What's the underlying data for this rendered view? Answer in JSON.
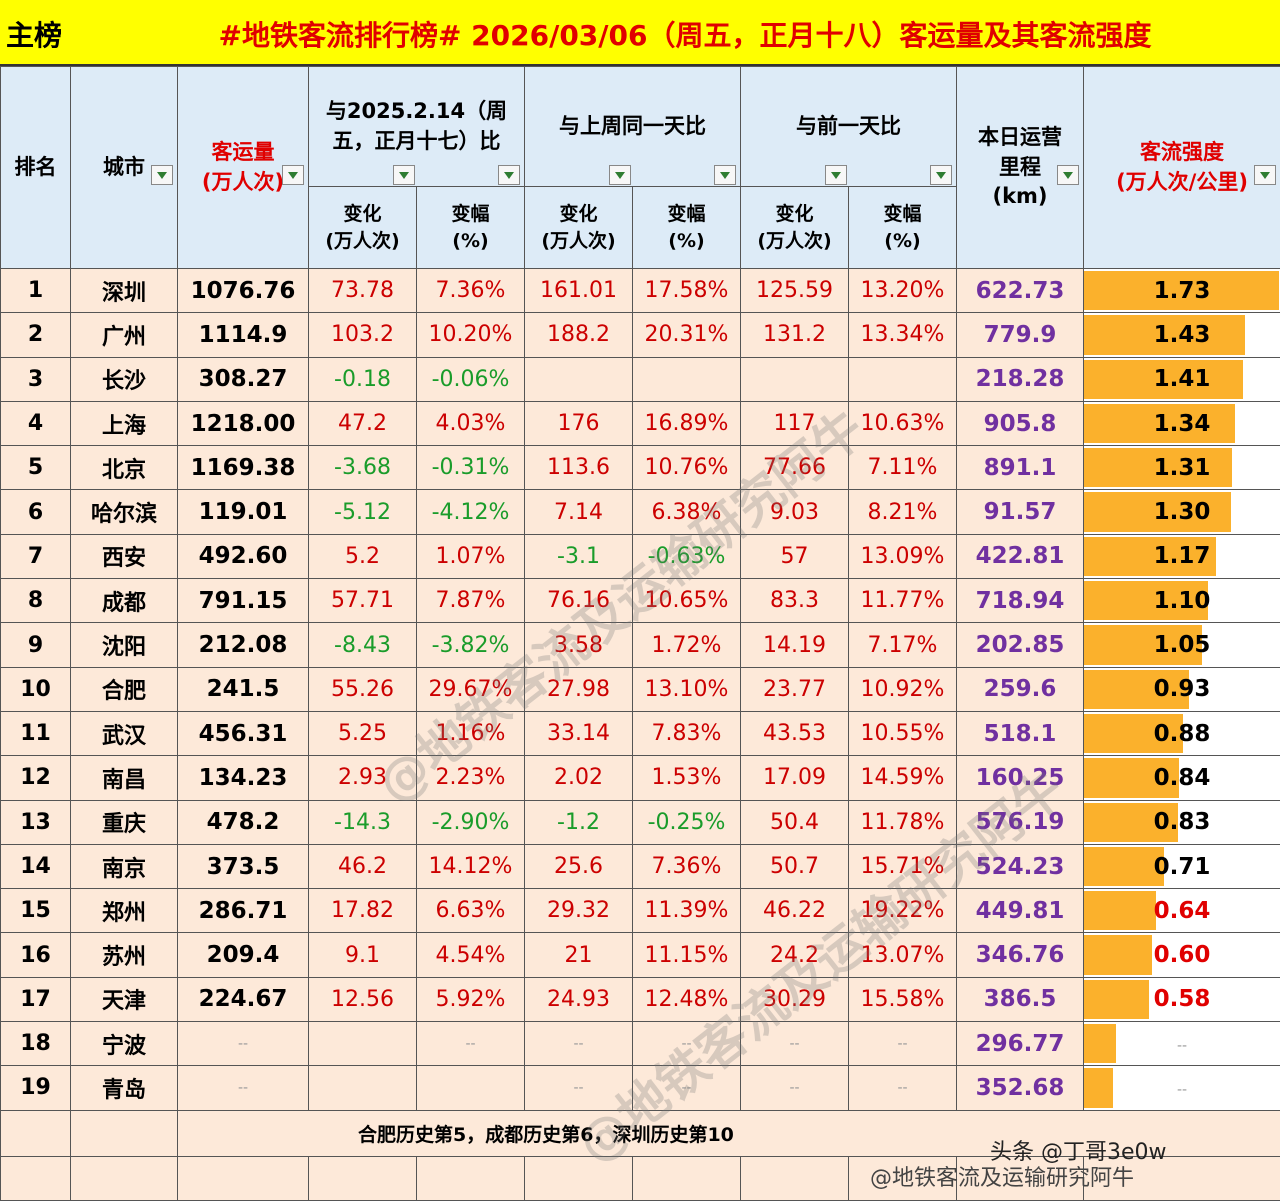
{
  "title": {
    "tag": "主榜",
    "main": "#地铁客流排行榜# 2026/03/06（周五，正月十八）客运量及其客流强度"
  },
  "headers": {
    "rank": "排名",
    "city": "城市",
    "volume": "客运量",
    "volume_unit": "(万人次)",
    "yoy_l1": "与2025.2.14（周",
    "yoy_l2": "五，正月十七）比",
    "wow": "与上周同一天比",
    "dod": "与前一天比",
    "mileage_l1": "本日运营",
    "mileage_l2": "里程",
    "mileage_l3": "(km)",
    "intensity": "客流强度",
    "intensity_unit": "(万人次/公里)",
    "change": "变化",
    "change_unit": "(万人次)",
    "pct": "变幅",
    "pct_unit": "(%)"
  },
  "rows": [
    {
      "rank": "1",
      "city": "深圳",
      "volume": "1076.76",
      "yc": "73.78",
      "yp": "7.36%",
      "wc": "161.01",
      "wp": "17.58%",
      "dc": "125.59",
      "dp": "13.20%",
      "mileage": "622.73",
      "intensity": "1.73",
      "intensity_value": 1.73
    },
    {
      "rank": "2",
      "city": "广州",
      "volume": "1114.9",
      "yc": "103.2",
      "yp": "10.20%",
      "wc": "188.2",
      "wp": "20.31%",
      "dc": "131.2",
      "dp": "13.34%",
      "mileage": "779.9",
      "intensity": "1.43",
      "intensity_value": 1.43
    },
    {
      "rank": "3",
      "city": "长沙",
      "volume": "308.27",
      "yc": "-0.18",
      "yp": "-0.06%",
      "wc": "",
      "wp": "",
      "dc": "",
      "dp": "",
      "mileage": "218.28",
      "intensity": "1.41",
      "intensity_value": 1.41
    },
    {
      "rank": "4",
      "city": "上海",
      "volume": "1218.00",
      "yc": "47.2",
      "yp": "4.03%",
      "wc": "176",
      "wp": "16.89%",
      "dc": "117",
      "dp": "10.63%",
      "mileage": "905.8",
      "intensity": "1.34",
      "intensity_value": 1.34
    },
    {
      "rank": "5",
      "city": "北京",
      "volume": "1169.38",
      "yc": "-3.68",
      "yp": "-0.31%",
      "wc": "113.6",
      "wp": "10.76%",
      "dc": "77.66",
      "dp": "7.11%",
      "mileage": "891.1",
      "intensity": "1.31",
      "intensity_value": 1.31
    },
    {
      "rank": "6",
      "city": "哈尔滨",
      "volume": "119.01",
      "yc": "-5.12",
      "yp": "-4.12%",
      "wc": "7.14",
      "wp": "6.38%",
      "dc": "9.03",
      "dp": "8.21%",
      "mileage": "91.57",
      "intensity": "1.30",
      "intensity_value": 1.3
    },
    {
      "rank": "7",
      "city": "西安",
      "volume": "492.60",
      "yc": "5.2",
      "yp": "1.07%",
      "wc": "-3.1",
      "wp": "-0.63%",
      "dc": "57",
      "dp": "13.09%",
      "mileage": "422.81",
      "intensity": "1.17",
      "intensity_value": 1.17
    },
    {
      "rank": "8",
      "city": "成都",
      "volume": "791.15",
      "yc": "57.71",
      "yp": "7.87%",
      "wc": "76.16",
      "wp": "10.65%",
      "dc": "83.3",
      "dp": "11.77%",
      "mileage": "718.94",
      "intensity": "1.10",
      "intensity_value": 1.1
    },
    {
      "rank": "9",
      "city": "沈阳",
      "volume": "212.08",
      "yc": "-8.43",
      "yp": "-3.82%",
      "wc": "3.58",
      "wp": "1.72%",
      "dc": "14.19",
      "dp": "7.17%",
      "mileage": "202.85",
      "intensity": "1.05",
      "intensity_value": 1.05
    },
    {
      "rank": "10",
      "city": "合肥",
      "volume": "241.5",
      "yc": "55.26",
      "yp": "29.67%",
      "wc": "27.98",
      "wp": "13.10%",
      "dc": "23.77",
      "dp": "10.92%",
      "mileage": "259.6",
      "intensity": "0.93",
      "intensity_value": 0.93
    },
    {
      "rank": "11",
      "city": "武汉",
      "volume": "456.31",
      "yc": "5.25",
      "yp": "1.16%",
      "wc": "33.14",
      "wp": "7.83%",
      "dc": "43.53",
      "dp": "10.55%",
      "mileage": "518.1",
      "intensity": "0.88",
      "intensity_value": 0.88
    },
    {
      "rank": "12",
      "city": "南昌",
      "volume": "134.23",
      "yc": "2.93",
      "yp": "2.23%",
      "wc": "2.02",
      "wp": "1.53%",
      "dc": "17.09",
      "dp": "14.59%",
      "mileage": "160.25",
      "intensity": "0.84",
      "intensity_value": 0.84
    },
    {
      "rank": "13",
      "city": "重庆",
      "volume": "478.2",
      "yc": "-14.3",
      "yp": "-2.90%",
      "wc": "-1.2",
      "wp": "-0.25%",
      "dc": "50.4",
      "dp": "11.78%",
      "mileage": "576.19",
      "intensity": "0.83",
      "intensity_value": 0.83
    },
    {
      "rank": "14",
      "city": "南京",
      "volume": "373.5",
      "yc": "46.2",
      "yp": "14.12%",
      "wc": "25.6",
      "wp": "7.36%",
      "dc": "50.7",
      "dp": "15.71%",
      "mileage": "524.23",
      "intensity": "0.71",
      "intensity_value": 0.71
    },
    {
      "rank": "15",
      "city": "郑州",
      "volume": "286.71",
      "yc": "17.82",
      "yp": "6.63%",
      "wc": "29.32",
      "wp": "11.39%",
      "dc": "46.22",
      "dp": "19.22%",
      "mileage": "449.81",
      "intensity": "0.64",
      "intensity_value": 0.64
    },
    {
      "rank": "16",
      "city": "苏州",
      "volume": "209.4",
      "yc": "9.1",
      "yp": "4.54%",
      "wc": "21",
      "wp": "11.15%",
      "dc": "24.2",
      "dp": "13.07%",
      "mileage": "346.76",
      "intensity": "0.60",
      "intensity_value": 0.6
    },
    {
      "rank": "17",
      "city": "天津",
      "volume": "224.67",
      "yc": "12.56",
      "yp": "5.92%",
      "wc": "24.93",
      "wp": "12.48%",
      "dc": "30.29",
      "dp": "15.58%",
      "mileage": "386.5",
      "intensity": "0.58",
      "intensity_value": 0.58
    },
    {
      "rank": "18",
      "city": "宁波",
      "volume": "--",
      "yc": "",
      "yp": "--",
      "wc": "--",
      "wp": "--",
      "dc": "--",
      "dp": "--",
      "mileage": "296.77",
      "intensity": "--",
      "intensity_value": 0.28
    },
    {
      "rank": "19",
      "city": "青岛",
      "volume": "--",
      "yc": "",
      "yp": "",
      "wc": "--",
      "wp": "--",
      "dc": "--",
      "dp": "--",
      "mileage": "352.68",
      "intensity": "--",
      "intensity_value": 0.26
    }
  ],
  "note": "合肥历史第5，成都历史第6，深圳历史第10",
  "watermark": "@地铁客流及运输研究阿牛",
  "footer_brand": "头条 @丁哥3e0w",
  "footer_weibo": "@地铁客流及运输研究阿牛",
  "colors": {
    "title_bg": "#ffff00",
    "title_text": "#e00000",
    "header_bg": "#ddebf7",
    "row_bg": "#fde9d9",
    "positive": "#cc0000",
    "negative": "#1a9c2a",
    "mileage": "#7030a0",
    "bar": "#fbb12c"
  }
}
